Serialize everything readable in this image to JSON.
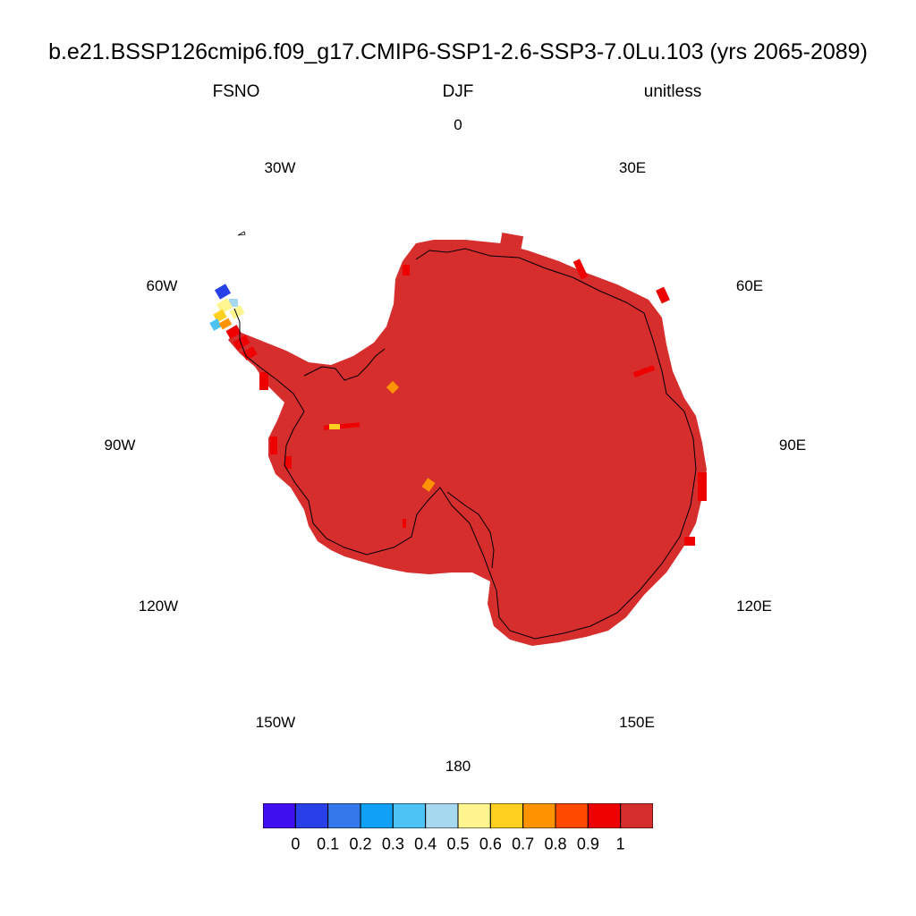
{
  "title": "b.e21.BSSP126cmip6.f09_g17.CMIP6-SSP1-2.6-SSP3-7.0Lu.103 (yrs 2065-2089)",
  "subtitle": {
    "variable": "FSNO",
    "season": "DJF",
    "units": "unitless"
  },
  "longitude_labels": [
    {
      "key": "0",
      "text": "0"
    },
    {
      "key": "30E",
      "text": "30E"
    },
    {
      "key": "60E",
      "text": "60E"
    },
    {
      "key": "90E",
      "text": "90E"
    },
    {
      "key": "120E",
      "text": "120E"
    },
    {
      "key": "150E",
      "text": "150E"
    },
    {
      "key": "180",
      "text": "180"
    },
    {
      "key": "150W",
      "text": "150W"
    },
    {
      "key": "120W",
      "text": "120W"
    },
    {
      "key": "90W",
      "text": "90W"
    },
    {
      "key": "60W",
      "text": "60W"
    },
    {
      "key": "30W",
      "text": "30W"
    }
  ],
  "map": {
    "projection": "south-polar-stereographic",
    "region": "Antarctica",
    "dominant_value_bin": "0.9-1",
    "fill_color": "#d62d2d",
    "coastline_color": "#000000"
  },
  "colorbar": {
    "colors": [
      "#3f0fef",
      "#2840e8",
      "#3478eb",
      "#10a0f5",
      "#4cc2f5",
      "#a6d8f0",
      "#fff58f",
      "#ffd020",
      "#ff9400",
      "#ff4a00",
      "#ee0000",
      "#d62d2d"
    ],
    "labels": [
      "0",
      "0.1",
      "0.2",
      "0.3",
      "0.4",
      "0.5",
      "0.6",
      "0.7",
      "0.8",
      "0.9",
      "1"
    ]
  }
}
